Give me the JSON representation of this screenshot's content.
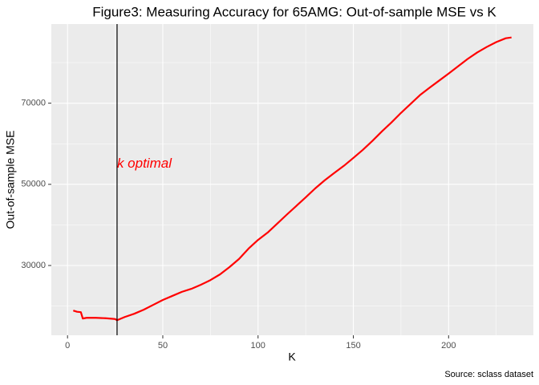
{
  "chart_data": {
    "type": "line",
    "title": "Figure3: Measuring Accuracy for 65AMG: Out-of-sample MSE vs K",
    "x_label": "K",
    "y_label": "Out-of-sample MSE",
    "caption": "Source: sclass dataset",
    "x": [
      3,
      5,
      7,
      8,
      10,
      15,
      20,
      25,
      26,
      30,
      35,
      40,
      45,
      50,
      55,
      60,
      65,
      70,
      75,
      80,
      85,
      90,
      95,
      100,
      105,
      110,
      115,
      120,
      125,
      130,
      135,
      140,
      145,
      150,
      155,
      160,
      165,
      170,
      175,
      180,
      185,
      190,
      195,
      200,
      205,
      210,
      215,
      220,
      225,
      230,
      233
    ],
    "series": [
      {
        "name": "MSE",
        "color": "#ff0000",
        "values": [
          18900,
          18600,
          18500,
          16930,
          17100,
          17100,
          17000,
          16800,
          16500,
          17300,
          18100,
          19100,
          20300,
          21500,
          22500,
          23500,
          24250,
          25250,
          26400,
          27800,
          29600,
          31600,
          34150,
          36300,
          38100,
          40300,
          42500,
          44650,
          46800,
          49000,
          51000,
          52800,
          54550,
          56500,
          58500,
          60700,
          63050,
          65250,
          67600,
          69800,
          72000,
          73800,
          75550,
          77300,
          79100,
          80900,
          82500,
          83850,
          85050,
          86000,
          86200
        ]
      }
    ],
    "vline": 26,
    "annotation": {
      "text": "k optimal",
      "x": 26,
      "y": 55000,
      "color": "#ff0000"
    },
    "xlim": [
      -8.5,
      244.5
    ],
    "xticks": [
      0,
      50,
      100,
      150,
      200
    ],
    "ylim": [
      12800,
      89500
    ],
    "yticks": [
      30000,
      50000,
      70000
    ],
    "grid": true
  }
}
